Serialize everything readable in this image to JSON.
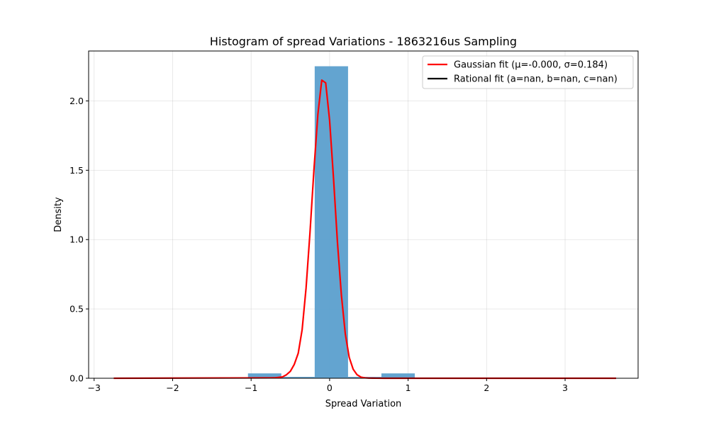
{
  "chart_data": {
    "type": "bar",
    "title": "Histogram of spread Variations - 1863216us Sampling",
    "xlabel": "Spread Variation",
    "ylabel": "Density",
    "xlim": [
      -3.07,
      3.93
    ],
    "ylim": [
      0,
      2.36
    ],
    "xticks": [
      -3,
      -2,
      -1,
      0,
      1,
      2,
      3
    ],
    "xtick_labels": [
      "−3",
      "−2",
      "−1",
      "0",
      "1",
      "2",
      "3"
    ],
    "yticks": [
      0.0,
      0.5,
      1.0,
      1.5,
      2.0
    ],
    "ytick_labels": [
      "0.0",
      "0.5",
      "1.0",
      "1.5",
      "2.0"
    ],
    "grid": true,
    "legend_position": "top-right",
    "histogram": {
      "bin_edges": [
        -1.04,
        -0.615,
        -0.19,
        0.235,
        0.66,
        1.085
      ],
      "values": [
        0.035,
        0.01,
        2.25,
        0.01,
        0.035
      ],
      "color": "#5b9fcd"
    },
    "series": [
      {
        "name": "Gaussian fit (μ=-0.000, σ=0.184)",
        "kind": "line",
        "color": "#ff0000",
        "x": [
          -2.75,
          -0.7,
          -0.6,
          -0.55,
          -0.5,
          -0.45,
          -0.4,
          -0.35,
          -0.3,
          -0.25,
          -0.2,
          -0.15,
          -0.1,
          -0.05,
          0.0,
          0.05,
          0.1,
          0.15,
          0.2,
          0.25,
          0.3,
          0.35,
          0.4,
          0.45,
          0.5,
          0.55,
          0.6,
          0.7,
          3.65
        ],
        "y": [
          0.0,
          0.003,
          0.01,
          0.025,
          0.05,
          0.1,
          0.18,
          0.35,
          0.65,
          1.05,
          1.5,
          1.9,
          2.15,
          2.13,
          1.86,
          1.44,
          0.98,
          0.6,
          0.32,
          0.15,
          0.065,
          0.025,
          0.008,
          0.003,
          0.001,
          0.0005,
          0.0002,
          0.0001,
          0.0
        ],
        "points": [
          [
            -2.75,
            0.0
          ],
          [
            -0.7,
            0.003
          ],
          [
            -0.6,
            0.01
          ],
          [
            -0.55,
            0.025
          ],
          [
            -0.5,
            0.05
          ],
          [
            -0.45,
            0.1
          ],
          [
            -0.4,
            0.18
          ],
          [
            -0.35,
            0.35
          ],
          [
            -0.3,
            0.65
          ],
          [
            -0.25,
            1.05
          ],
          [
            -0.2,
            1.5
          ],
          [
            -0.15,
            1.9
          ],
          [
            -0.1,
            2.15
          ],
          [
            -0.05,
            2.13
          ],
          [
            0.0,
            1.86
          ],
          [
            0.05,
            1.44
          ],
          [
            0.1,
            0.98
          ],
          [
            0.15,
            0.6
          ],
          [
            0.2,
            0.32
          ],
          [
            0.25,
            0.15
          ],
          [
            0.3,
            0.065
          ],
          [
            0.35,
            0.025
          ],
          [
            0.4,
            0.008
          ],
          [
            0.45,
            0.003
          ],
          [
            0.5,
            0.001
          ],
          [
            0.55,
            0.0005
          ],
          [
            0.6,
            0.0002
          ],
          [
            0.7,
            0.0001
          ],
          [
            3.65,
            0.0
          ]
        ]
      },
      {
        "name": "Rational fit (a=nan, b=nan, c=nan)",
        "kind": "line",
        "color": "#000000",
        "x": [],
        "y": [],
        "points": []
      }
    ]
  }
}
